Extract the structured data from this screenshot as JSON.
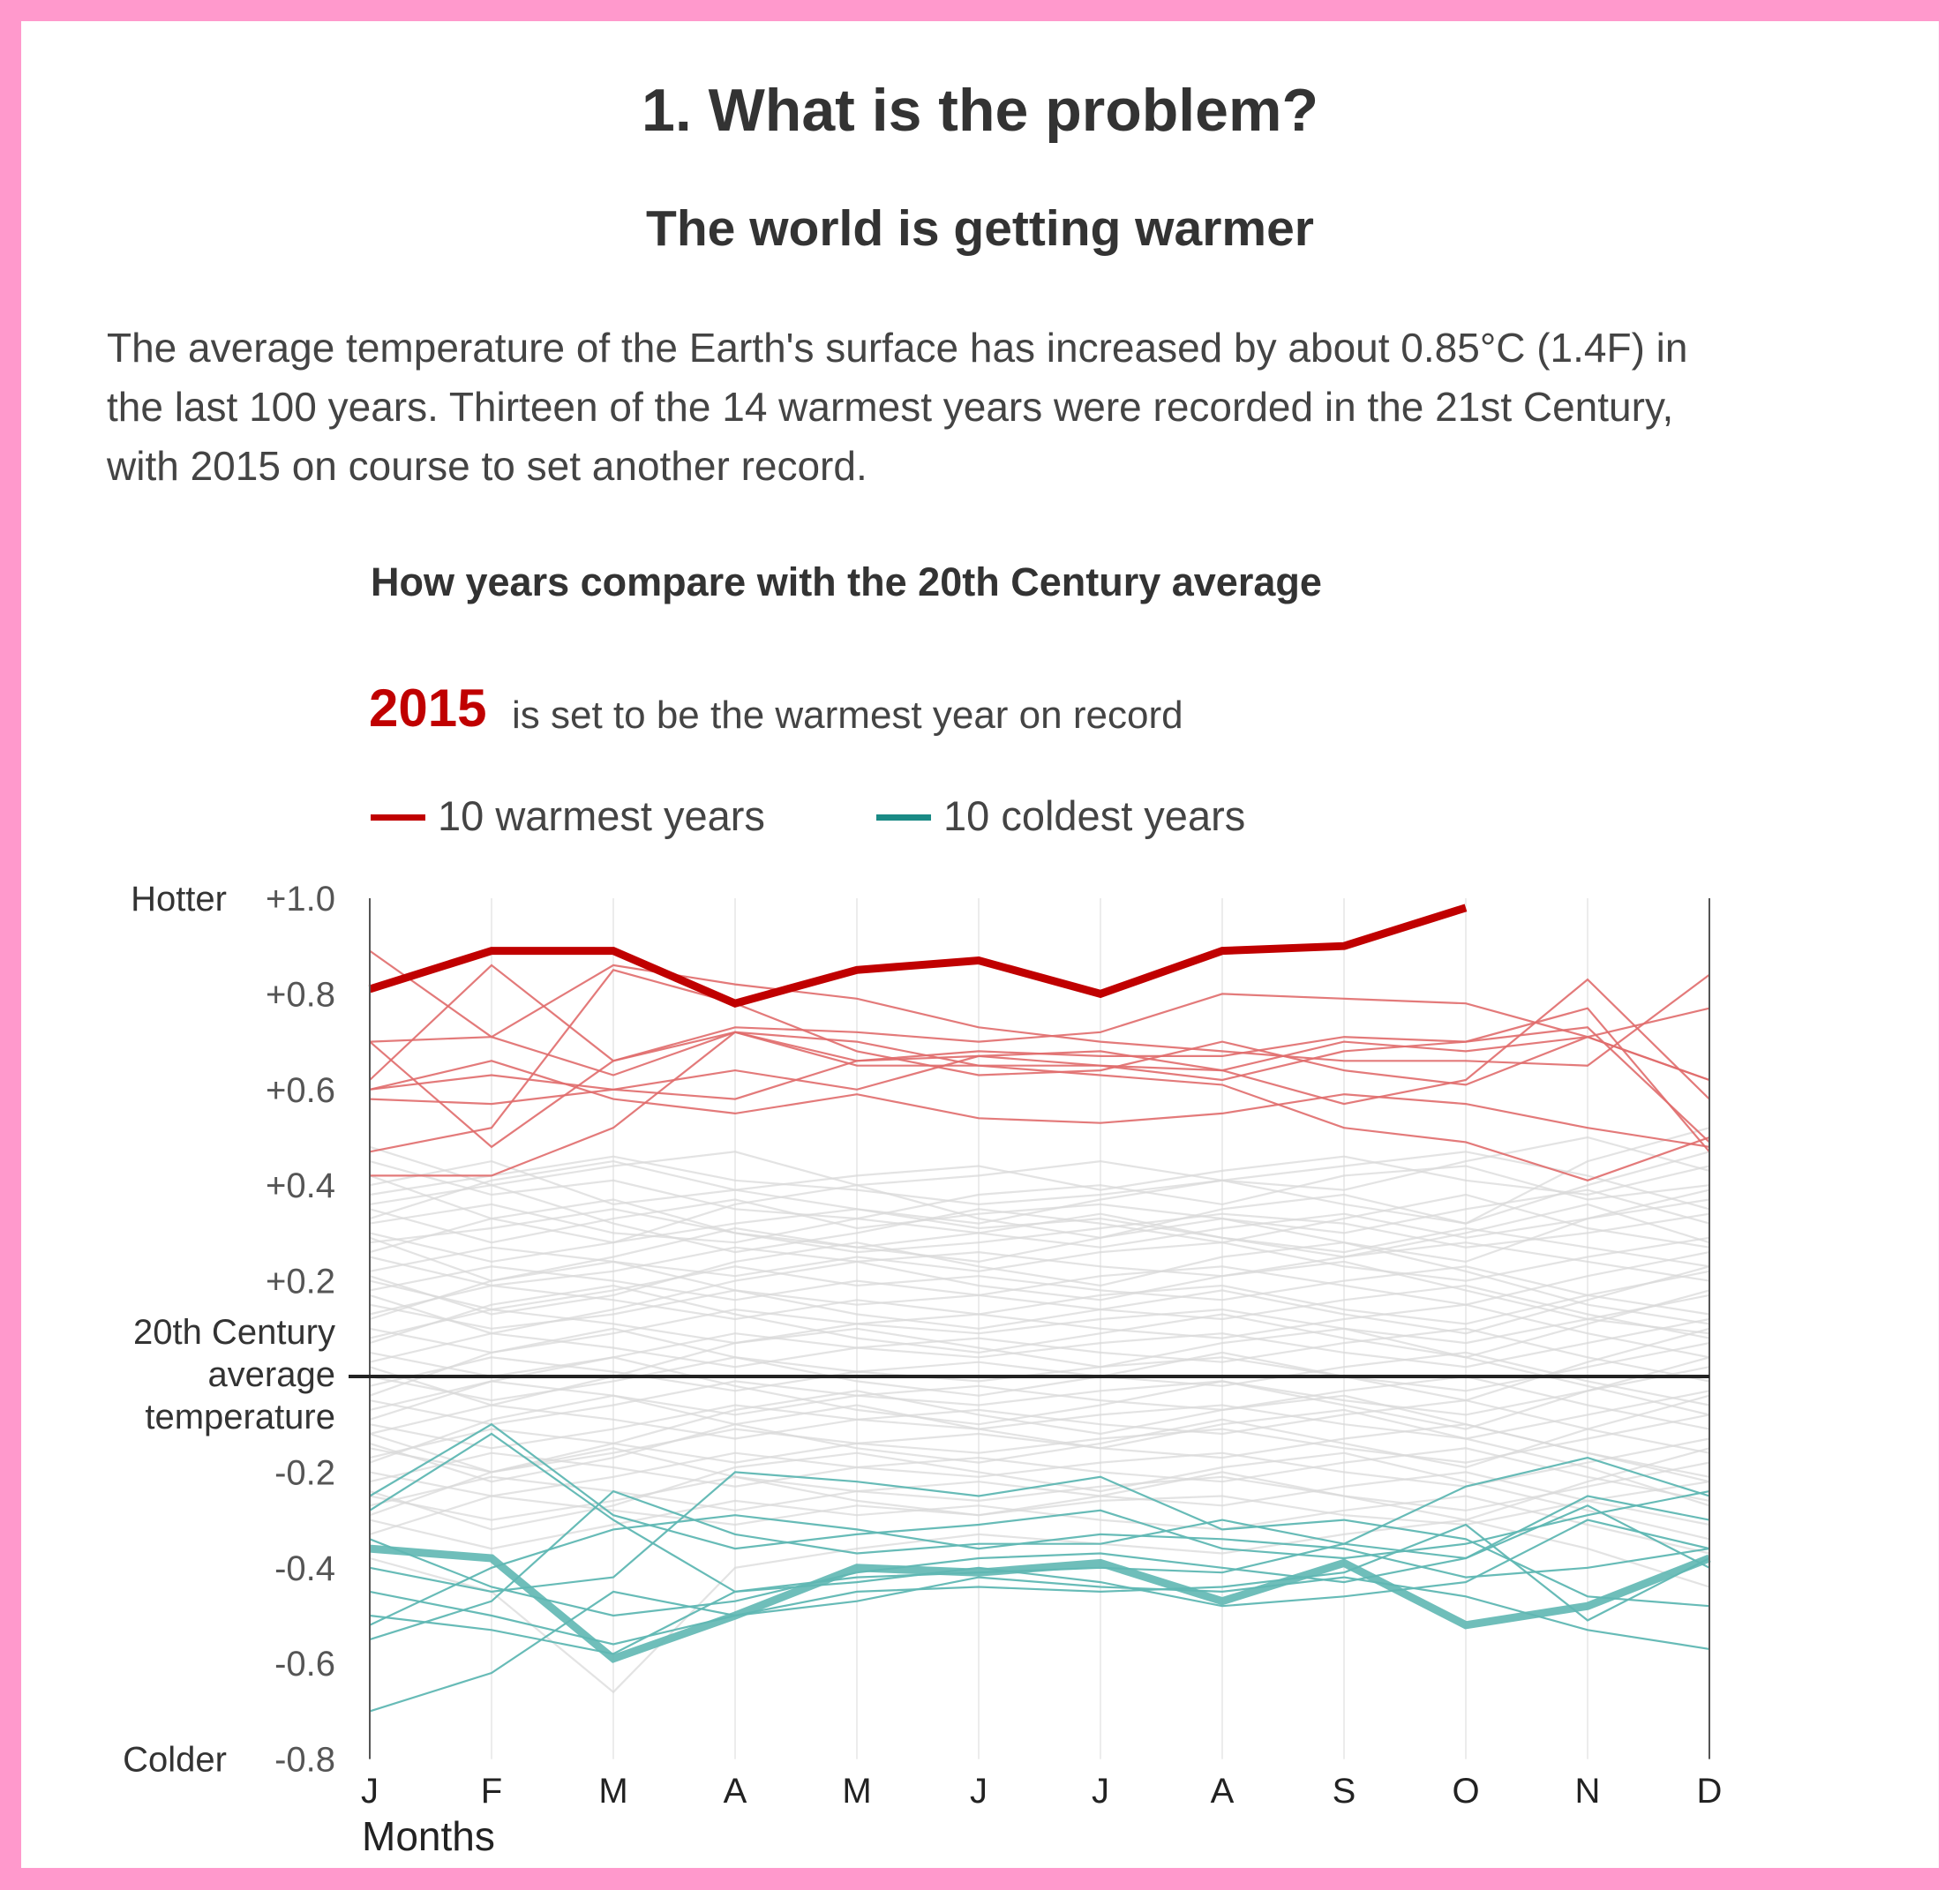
{
  "colors": {
    "border": "#ff99cc",
    "warm": "#c00000",
    "warm_thin": "#e06b6b",
    "cold": "#5fb7b3",
    "cold_legend": "#1a8a85",
    "other": "#d9d9d9",
    "zero_line": "#222222",
    "text": "#444444"
  },
  "header": {
    "title": "1. What is the problem?",
    "subtitle": "The world is getting warmer"
  },
  "intro": {
    "lines": [
      "The average temperature of the Earth's surface has increased by about 0.85°C (1.4F) in",
      "the last 100 years. Thirteen of the 14 warmest years were recorded in the 21st Century,",
      "with 2015 on course to set another record."
    ]
  },
  "chart_heading": "How years compare with the 20th Century average",
  "record": {
    "year": "2015",
    "text": "is set to be the warmest year on record"
  },
  "legend": [
    {
      "label": "10 warmest years",
      "color": "#c00000"
    },
    {
      "label": "10 coldest years",
      "color": "#1a8a85"
    }
  ],
  "chart_data": {
    "type": "line",
    "title": "How years compare with the 20th Century average",
    "xlabel": "Months",
    "ylabel": "",
    "x": [
      "J",
      "F",
      "M",
      "A",
      "M",
      "J",
      "J",
      "A",
      "S",
      "O",
      "N",
      "D"
    ],
    "ylim": [
      -0.8,
      1.0
    ],
    "yticks": [
      {
        "value": 1.0,
        "label": "+1.0"
      },
      {
        "value": 0.8,
        "label": "+0.8"
      },
      {
        "value": 0.6,
        "label": "+0.6"
      },
      {
        "value": 0.4,
        "label": "+0.4"
      },
      {
        "value": 0.2,
        "label": "+0.2"
      },
      {
        "value": -0.2,
        "label": "-0.2"
      },
      {
        "value": -0.4,
        "label": "-0.4"
      },
      {
        "value": -0.6,
        "label": "-0.6"
      },
      {
        "value": -0.8,
        "label": "-0.8"
      }
    ],
    "y_annotations": {
      "top": "Hotter",
      "bottom": "Colder",
      "zero": [
        "20th Century",
        "average",
        "temperature"
      ]
    },
    "grid": "vertical",
    "legend_position": "top-left",
    "highlight_warm": {
      "name": "2015",
      "values": [
        0.81,
        0.89,
        0.89,
        0.78,
        0.85,
        0.87,
        0.8,
        0.89,
        0.9,
        0.98,
        null,
        null
      ]
    },
    "highlight_cold": {
      "name": "coldest highlighted year",
      "values": [
        -0.36,
        -0.38,
        -0.59,
        -0.5,
        -0.4,
        -0.41,
        -0.39,
        -0.47,
        -0.39,
        -0.52,
        -0.48,
        -0.38
      ]
    },
    "warm_series": [
      {
        "values": [
          0.89,
          0.71,
          0.63,
          0.72,
          0.66,
          0.67,
          0.68,
          0.64,
          0.7,
          0.68,
          0.71,
          0.62
        ]
      },
      {
        "values": [
          0.7,
          0.71,
          0.86,
          0.82,
          0.79,
          0.73,
          0.7,
          0.68,
          0.66,
          0.66,
          0.65,
          0.84
        ]
      },
      {
        "values": [
          0.7,
          0.48,
          0.66,
          0.73,
          0.72,
          0.7,
          0.72,
          0.8,
          0.79,
          0.78,
          0.71,
          0.62
        ]
      },
      {
        "values": [
          0.62,
          0.86,
          0.66,
          0.72,
          0.65,
          0.65,
          0.65,
          0.62,
          0.68,
          0.7,
          0.77,
          0.47
        ]
      },
      {
        "values": [
          0.6,
          0.63,
          0.6,
          0.58,
          0.66,
          0.68,
          0.67,
          0.67,
          0.71,
          0.7,
          0.73,
          0.49
        ]
      },
      {
        "values": [
          0.58,
          0.57,
          0.6,
          0.64,
          0.6,
          0.67,
          0.65,
          0.64,
          0.57,
          0.62,
          0.83,
          0.58
        ]
      },
      {
        "values": [
          0.47,
          0.52,
          0.85,
          0.78,
          0.68,
          0.63,
          0.64,
          0.7,
          0.64,
          0.61,
          0.71,
          0.77
        ]
      },
      {
        "values": [
          0.42,
          0.42,
          0.52,
          0.72,
          0.7,
          0.65,
          0.63,
          0.61,
          0.52,
          0.49,
          0.41,
          0.5
        ]
      },
      {
        "values": [
          0.6,
          0.66,
          0.58,
          0.55,
          0.59,
          0.54,
          0.53,
          0.55,
          0.59,
          0.57,
          0.52,
          0.48
        ]
      }
    ],
    "cold_series": [
      {
        "values": [
          -0.25,
          -0.1,
          -0.29,
          -0.36,
          -0.33,
          -0.31,
          -0.28,
          -0.36,
          -0.38,
          -0.35,
          -0.29,
          -0.24
        ]
      },
      {
        "values": [
          -0.28,
          -0.12,
          -0.3,
          -0.45,
          -0.42,
          -0.41,
          -0.4,
          -0.41,
          -0.35,
          -0.23,
          -0.17,
          -0.25
        ]
      },
      {
        "values": [
          -0.45,
          -0.5,
          -0.56,
          -0.5,
          -0.45,
          -0.44,
          -0.45,
          -0.44,
          -0.41,
          -0.31,
          -0.51,
          -0.38
        ]
      },
      {
        "values": [
          -0.55,
          -0.47,
          -0.24,
          -0.33,
          -0.37,
          -0.35,
          -0.35,
          -0.3,
          -0.35,
          -0.38,
          -0.27,
          -0.4
        ]
      },
      {
        "values": [
          -0.7,
          -0.62,
          -0.45,
          -0.5,
          -0.47,
          -0.42,
          -0.44,
          -0.45,
          -0.42,
          -0.46,
          -0.53,
          -0.57
        ]
      },
      {
        "values": [
          -0.5,
          -0.53,
          -0.58,
          -0.45,
          -0.43,
          -0.4,
          -0.43,
          -0.48,
          -0.46,
          -0.43,
          -0.3,
          -0.36
        ]
      },
      {
        "values": [
          -0.4,
          -0.45,
          -0.42,
          -0.2,
          -0.22,
          -0.25,
          -0.21,
          -0.32,
          -0.3,
          -0.34,
          -0.46,
          -0.48
        ]
      },
      {
        "values": [
          -0.52,
          -0.4,
          -0.32,
          -0.29,
          -0.32,
          -0.36,
          -0.33,
          -0.34,
          -0.36,
          -0.42,
          -0.4,
          -0.36
        ]
      },
      {
        "values": [
          -0.34,
          -0.44,
          -0.5,
          -0.47,
          -0.41,
          -0.38,
          -0.37,
          -0.4,
          -0.43,
          -0.38,
          -0.25,
          -0.3
        ]
      }
    ],
    "other_series": [
      [
        0.45,
        0.38,
        0.41,
        0.35,
        0.33,
        0.38,
        0.4,
        0.36,
        0.42,
        0.44,
        0.37,
        0.4
      ],
      [
        0.4,
        0.45,
        0.36,
        0.39,
        0.42,
        0.44,
        0.39,
        0.43,
        0.46,
        0.41,
        0.38,
        0.44
      ],
      [
        0.35,
        0.28,
        0.33,
        0.37,
        0.31,
        0.34,
        0.36,
        0.33,
        0.3,
        0.35,
        0.39,
        0.32
      ],
      [
        0.38,
        0.42,
        0.46,
        0.41,
        0.39,
        0.36,
        0.38,
        0.41,
        0.44,
        0.47,
        0.42,
        0.35
      ],
      [
        0.32,
        0.36,
        0.3,
        0.28,
        0.33,
        0.3,
        0.27,
        0.31,
        0.34,
        0.29,
        0.33,
        0.37
      ],
      [
        0.3,
        0.24,
        0.28,
        0.32,
        0.35,
        0.31,
        0.33,
        0.29,
        0.26,
        0.31,
        0.27,
        0.23
      ],
      [
        0.28,
        0.31,
        0.35,
        0.3,
        0.26,
        0.28,
        0.31,
        0.34,
        0.32,
        0.27,
        0.3,
        0.34
      ],
      [
        0.25,
        0.19,
        0.22,
        0.27,
        0.24,
        0.26,
        0.23,
        0.21,
        0.25,
        0.28,
        0.24,
        0.2
      ],
      [
        0.22,
        0.27,
        0.24,
        0.21,
        0.25,
        0.22,
        0.26,
        0.28,
        0.23,
        0.2,
        0.25,
        0.29
      ],
      [
        0.2,
        0.14,
        0.18,
        0.23,
        0.19,
        0.21,
        0.18,
        0.16,
        0.2,
        0.23,
        0.17,
        0.13
      ],
      [
        0.18,
        0.23,
        0.2,
        0.16,
        0.2,
        0.17,
        0.21,
        0.23,
        0.19,
        0.15,
        0.21,
        0.26
      ],
      [
        0.15,
        0.1,
        0.13,
        0.18,
        0.15,
        0.17,
        0.14,
        0.12,
        0.16,
        0.19,
        0.13,
        0.08
      ],
      [
        0.13,
        0.19,
        0.16,
        0.12,
        0.16,
        0.13,
        0.17,
        0.19,
        0.14,
        0.11,
        0.17,
        0.22
      ],
      [
        0.1,
        0.05,
        0.09,
        0.14,
        0.11,
        0.13,
        0.1,
        0.08,
        0.12,
        0.15,
        0.09,
        0.04
      ],
      [
        0.08,
        0.14,
        0.11,
        0.07,
        0.11,
        0.09,
        0.12,
        0.14,
        0.1,
        0.07,
        0.12,
        0.17
      ],
      [
        0.05,
        0.0,
        0.04,
        0.09,
        0.06,
        0.08,
        0.05,
        0.03,
        0.07,
        0.1,
        0.04,
        -0.01
      ],
      [
        0.03,
        0.09,
        0.06,
        0.02,
        0.06,
        0.04,
        0.07,
        0.09,
        0.05,
        0.02,
        0.07,
        0.12
      ],
      [
        0.0,
        -0.05,
        -0.01,
        0.04,
        0.01,
        0.03,
        0.0,
        -0.02,
        0.02,
        0.05,
        -0.01,
        -0.06
      ],
      [
        -0.02,
        0.04,
        0.01,
        -0.03,
        0.01,
        -0.01,
        0.02,
        0.04,
        0.0,
        -0.03,
        0.02,
        0.07
      ],
      [
        -0.05,
        -0.1,
        -0.06,
        -0.01,
        -0.04,
        -0.02,
        -0.05,
        -0.07,
        -0.03,
        0.0,
        -0.06,
        -0.11
      ],
      [
        -0.07,
        -0.01,
        -0.04,
        -0.08,
        -0.04,
        -0.06,
        -0.03,
        -0.01,
        -0.05,
        -0.08,
        -0.03,
        0.02
      ],
      [
        -0.1,
        -0.15,
        -0.11,
        -0.06,
        -0.09,
        -0.07,
        -0.1,
        -0.12,
        -0.08,
        -0.05,
        -0.11,
        -0.16
      ],
      [
        -0.12,
        -0.06,
        -0.09,
        -0.13,
        -0.09,
        -0.11,
        -0.08,
        -0.06,
        -0.1,
        -0.13,
        -0.08,
        -0.03
      ],
      [
        -0.15,
        -0.2,
        -0.16,
        -0.11,
        -0.14,
        -0.12,
        -0.15,
        -0.17,
        -0.13,
        -0.1,
        -0.16,
        -0.21
      ],
      [
        -0.17,
        -0.11,
        -0.14,
        -0.18,
        -0.14,
        -0.16,
        -0.13,
        -0.11,
        -0.15,
        -0.18,
        -0.13,
        -0.08
      ],
      [
        -0.2,
        -0.25,
        -0.21,
        -0.16,
        -0.19,
        -0.17,
        -0.2,
        -0.22,
        -0.18,
        -0.15,
        -0.21,
        -0.26
      ],
      [
        -0.22,
        -0.16,
        -0.19,
        -0.23,
        -0.19,
        -0.21,
        -0.18,
        -0.16,
        -0.2,
        -0.23,
        -0.18,
        -0.13
      ],
      [
        -0.25,
        -0.3,
        -0.26,
        -0.21,
        -0.24,
        -0.22,
        -0.25,
        -0.27,
        -0.23,
        -0.2,
        -0.26,
        -0.31
      ],
      [
        -0.27,
        -0.21,
        -0.24,
        -0.28,
        -0.24,
        -0.26,
        -0.23,
        -0.21,
        -0.25,
        -0.28,
        -0.23,
        -0.18
      ],
      [
        -0.3,
        -0.36,
        -0.31,
        -0.26,
        -0.29,
        -0.27,
        -0.3,
        -0.32,
        -0.28,
        -0.25,
        -0.31,
        -0.37
      ],
      [
        -0.33,
        -0.25,
        -0.28,
        -0.31,
        -0.27,
        -0.29,
        -0.26,
        -0.25,
        -0.29,
        -0.31,
        -0.26,
        -0.22
      ],
      [
        -0.38,
        -0.45,
        -0.66,
        -0.4,
        -0.36,
        -0.33,
        -0.35,
        -0.37,
        -0.33,
        -0.3,
        -0.36,
        -0.44
      ],
      [
        0.42,
        0.33,
        0.28,
        0.36,
        0.4,
        0.33,
        0.29,
        0.35,
        0.38,
        0.32,
        0.45,
        0.52
      ],
      [
        0.36,
        0.4,
        0.32,
        0.26,
        0.3,
        0.35,
        0.32,
        0.28,
        0.33,
        0.38,
        0.31,
        0.27
      ],
      [
        0.26,
        0.33,
        0.37,
        0.3,
        0.27,
        0.24,
        0.29,
        0.33,
        0.28,
        0.24,
        0.33,
        0.39
      ],
      [
        0.17,
        0.09,
        0.14,
        0.2,
        0.24,
        0.19,
        0.16,
        0.21,
        0.24,
        0.18,
        0.12,
        0.09
      ],
      [
        0.12,
        0.2,
        0.24,
        0.18,
        0.13,
        0.1,
        0.14,
        0.18,
        0.13,
        0.09,
        0.16,
        0.23
      ],
      [
        0.02,
        -0.06,
        0.0,
        0.07,
        0.1,
        0.06,
        0.02,
        0.07,
        0.1,
        0.04,
        -0.02,
        -0.08
      ],
      [
        -0.04,
        0.05,
        0.1,
        0.04,
        -0.01,
        -0.04,
        0.0,
        0.05,
        0.0,
        -0.05,
        0.03,
        0.1
      ],
      [
        -0.12,
        -0.2,
        -0.14,
        -0.07,
        -0.03,
        -0.08,
        -0.12,
        -0.07,
        -0.04,
        -0.1,
        -0.16,
        -0.22
      ],
      [
        -0.18,
        -0.09,
        -0.04,
        -0.1,
        -0.15,
        -0.18,
        -0.14,
        -0.09,
        -0.14,
        -0.19,
        -0.11,
        -0.04
      ],
      [
        -0.24,
        -0.32,
        -0.27,
        -0.19,
        -0.16,
        -0.2,
        -0.24,
        -0.19,
        -0.16,
        -0.22,
        -0.28,
        -0.34
      ],
      [
        0.48,
        0.4,
        0.44,
        0.47,
        0.4,
        0.42,
        0.45,
        0.41,
        0.39,
        0.45,
        0.5,
        0.43
      ],
      [
        0.33,
        0.41,
        0.45,
        0.39,
        0.35,
        0.32,
        0.37,
        0.41,
        0.36,
        0.32,
        0.4,
        0.47
      ],
      [
        0.07,
        0.15,
        0.19,
        0.13,
        0.08,
        0.05,
        0.09,
        0.13,
        0.08,
        0.04,
        0.11,
        0.18
      ],
      [
        -0.09,
        -0.01,
        0.04,
        -0.02,
        -0.07,
        -0.1,
        -0.06,
        -0.01,
        -0.06,
        -0.11,
        -0.03,
        0.04
      ],
      [
        -0.29,
        -0.2,
        -0.15,
        -0.21,
        -0.26,
        -0.29,
        -0.25,
        -0.2,
        -0.25,
        -0.3,
        -0.22,
        -0.15
      ],
      [
        0.21,
        0.13,
        0.17,
        0.24,
        0.28,
        0.23,
        0.19,
        0.25,
        0.28,
        0.22,
        0.15,
        0.11
      ],
      [
        -0.14,
        -0.22,
        -0.17,
        -0.1,
        -0.06,
        -0.11,
        -0.15,
        -0.1,
        -0.07,
        -0.13,
        -0.19,
        -0.27
      ],
      [
        0.29,
        0.2,
        0.25,
        0.31,
        0.27,
        0.3,
        0.34,
        0.29,
        0.25,
        0.3,
        0.36,
        0.28
      ]
    ]
  }
}
